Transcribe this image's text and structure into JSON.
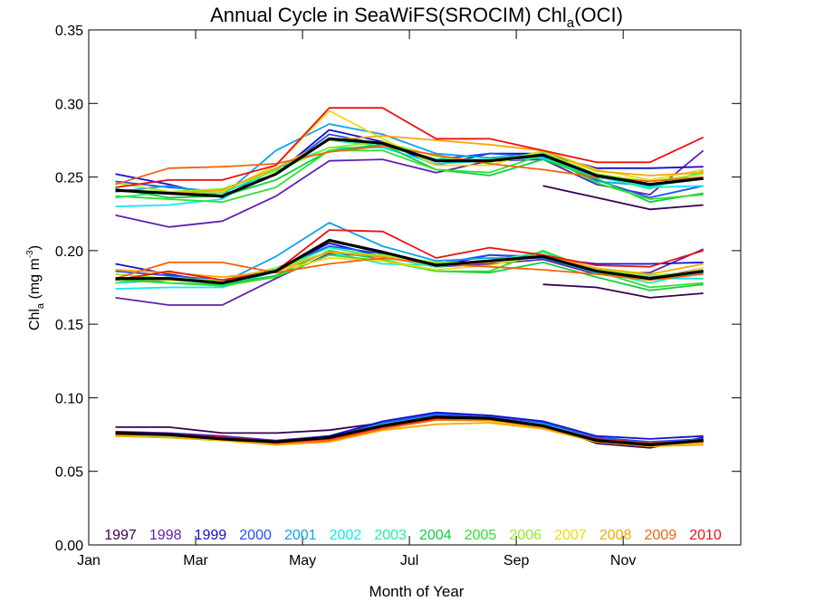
{
  "chart_data": {
    "type": "line",
    "title": "Annual Cycle in SeaWiFS(SROCIM) Chl",
    "title_sub": "a",
    "title_tail": "(OCI)",
    "xlabel": "Month of Year",
    "ylabel_main": "Chl",
    "ylabel_sub": "a",
    "ylabel_units": "(mg m",
    "ylabel_sup": "-3",
    "ylabel_close": ")",
    "xlim": [
      0.5,
      12.7
    ],
    "ylim": [
      0.0,
      0.35
    ],
    "x_ticks": [
      {
        "value": 0.5,
        "label": "Jan"
      },
      {
        "value": 2.5,
        "label": "Mar"
      },
      {
        "value": 4.5,
        "label": "May"
      },
      {
        "value": 6.5,
        "label": "Jul"
      },
      {
        "value": 8.5,
        "label": "Sep"
      },
      {
        "value": 10.5,
        "label": "Nov"
      }
    ],
    "y_ticks": [
      {
        "value": 0.0,
        "label": "0.00"
      },
      {
        "value": 0.05,
        "label": "0.05"
      },
      {
        "value": 0.1,
        "label": "0.10"
      },
      {
        "value": 0.15,
        "label": "0.15"
      },
      {
        "value": 0.2,
        "label": "0.20"
      },
      {
        "value": 0.25,
        "label": "0.25"
      },
      {
        "value": 0.3,
        "label": "0.30"
      },
      {
        "value": 0.35,
        "label": "0.35"
      }
    ],
    "x": [
      1,
      2,
      3,
      4,
      5,
      6,
      7,
      8,
      9,
      10,
      11,
      12
    ],
    "legend_position": "bottom",
    "series": [
      {
        "name": "1997",
        "color": "#3a0050",
        "upper": [
          null,
          null,
          null,
          null,
          null,
          null,
          null,
          null,
          0.244,
          0.236,
          0.228,
          0.231
        ],
        "middle": [
          null,
          null,
          null,
          null,
          null,
          null,
          null,
          null,
          0.177,
          0.175,
          0.168,
          0.171
        ],
        "lower": [
          0.08,
          0.08,
          0.076,
          0.076,
          0.078,
          0.083,
          0.088,
          0.087,
          0.082,
          0.069,
          0.066,
          0.073
        ]
      },
      {
        "name": "1998",
        "color": "#6020b0",
        "upper": [
          0.224,
          0.216,
          0.22,
          0.237,
          0.261,
          0.262,
          0.253,
          0.261,
          0.262,
          0.245,
          0.238,
          0.268
        ],
        "middle": [
          0.168,
          0.163,
          0.163,
          0.181,
          0.198,
          0.196,
          0.189,
          0.191,
          0.194,
          0.184,
          0.185,
          0.201
        ],
        "lower": [
          0.077,
          0.076,
          0.074,
          0.071,
          0.074,
          0.082,
          0.087,
          0.087,
          0.083,
          0.072,
          0.068,
          0.072
        ]
      },
      {
        "name": "1999",
        "color": "#1010d0",
        "upper": [
          0.252,
          0.245,
          0.236,
          0.252,
          0.282,
          0.274,
          0.258,
          0.266,
          0.266,
          0.256,
          0.256,
          0.257
        ],
        "middle": [
          0.191,
          0.184,
          0.178,
          0.187,
          0.205,
          0.196,
          0.189,
          0.197,
          0.195,
          0.191,
          0.191,
          0.192
        ],
        "lower": [
          0.076,
          0.075,
          0.072,
          0.07,
          0.074,
          0.084,
          0.09,
          0.088,
          0.084,
          0.074,
          0.072,
          0.074
        ]
      },
      {
        "name": "2000",
        "color": "#2050f0",
        "upper": [
          0.247,
          0.243,
          0.24,
          0.252,
          0.279,
          0.272,
          0.262,
          0.266,
          0.264,
          0.248,
          0.236,
          0.244
        ],
        "middle": [
          0.186,
          0.183,
          0.18,
          0.188,
          0.203,
          0.198,
          0.191,
          0.197,
          0.196,
          0.188,
          0.181,
          0.188
        ],
        "lower": [
          0.075,
          0.074,
          0.072,
          0.07,
          0.073,
          0.083,
          0.089,
          0.087,
          0.083,
          0.073,
          0.07,
          0.072
        ]
      },
      {
        "name": "2001",
        "color": "#10a0f0",
        "upper": [
          0.24,
          0.244,
          0.237,
          0.268,
          0.286,
          0.279,
          0.266,
          0.263,
          0.266,
          0.247,
          0.244,
          0.249
        ],
        "middle": [
          0.178,
          0.18,
          0.178,
          0.196,
          0.219,
          0.203,
          0.193,
          0.195,
          0.195,
          0.185,
          0.182,
          0.185
        ],
        "lower": [
          0.075,
          0.074,
          0.071,
          0.069,
          0.073,
          0.082,
          0.088,
          0.086,
          0.081,
          0.071,
          0.069,
          0.071
        ]
      },
      {
        "name": "2002",
        "color": "#10e8f0",
        "upper": [
          0.23,
          0.231,
          0.235,
          0.256,
          0.27,
          0.27,
          0.259,
          0.261,
          0.263,
          0.25,
          0.243,
          0.244
        ],
        "middle": [
          0.174,
          0.175,
          0.175,
          0.186,
          0.199,
          0.191,
          0.19,
          0.193,
          0.196,
          0.185,
          0.181,
          0.181
        ],
        "lower": [
          0.075,
          0.075,
          0.072,
          0.07,
          0.073,
          0.082,
          0.087,
          0.086,
          0.082,
          0.072,
          0.069,
          0.071
        ]
      },
      {
        "name": "2003",
        "color": "#20f0a0",
        "upper": [
          0.236,
          0.24,
          0.239,
          0.255,
          0.275,
          0.271,
          0.262,
          0.262,
          0.266,
          0.251,
          0.242,
          0.254
        ],
        "middle": [
          0.178,
          0.182,
          0.177,
          0.187,
          0.202,
          0.196,
          0.189,
          0.193,
          0.199,
          0.186,
          0.178,
          0.186
        ],
        "lower": [
          0.075,
          0.074,
          0.071,
          0.069,
          0.072,
          0.081,
          0.086,
          0.085,
          0.08,
          0.071,
          0.068,
          0.07
        ]
      },
      {
        "name": "2004",
        "color": "#10d040",
        "upper": [
          0.242,
          0.236,
          0.237,
          0.248,
          0.268,
          0.272,
          0.255,
          0.251,
          0.262,
          0.249,
          0.233,
          0.239
        ],
        "middle": [
          0.181,
          0.178,
          0.177,
          0.183,
          0.2,
          0.194,
          0.186,
          0.185,
          0.192,
          0.182,
          0.173,
          0.177
        ],
        "lower": [
          0.076,
          0.075,
          0.072,
          0.07,
          0.072,
          0.081,
          0.087,
          0.085,
          0.08,
          0.072,
          0.068,
          0.07
        ]
      },
      {
        "name": "2005",
        "color": "#30e030",
        "upper": [
          0.237,
          0.235,
          0.233,
          0.243,
          0.268,
          0.268,
          0.255,
          0.253,
          0.265,
          0.246,
          0.235,
          0.238
        ],
        "middle": [
          0.18,
          0.178,
          0.176,
          0.182,
          0.197,
          0.193,
          0.186,
          0.186,
          0.2,
          0.186,
          0.175,
          0.178
        ],
        "lower": [
          0.074,
          0.073,
          0.071,
          0.069,
          0.071,
          0.08,
          0.086,
          0.085,
          0.079,
          0.071,
          0.067,
          0.069
        ]
      },
      {
        "name": "2006",
        "color": "#90f020",
        "upper": [
          0.246,
          0.24,
          0.242,
          0.254,
          0.27,
          0.274,
          0.264,
          0.26,
          0.267,
          0.252,
          0.247,
          0.252
        ],
        "middle": [
          0.184,
          0.181,
          0.18,
          0.188,
          0.199,
          0.197,
          0.192,
          0.192,
          0.197,
          0.187,
          0.183,
          0.186
        ],
        "lower": [
          0.074,
          0.073,
          0.071,
          0.068,
          0.071,
          0.08,
          0.085,
          0.084,
          0.079,
          0.071,
          0.067,
          0.069
        ]
      },
      {
        "name": "2007",
        "color": "#f0d810",
        "upper": [
          0.241,
          0.24,
          0.24,
          0.258,
          0.295,
          0.276,
          0.258,
          0.258,
          0.268,
          0.255,
          0.248,
          0.255
        ],
        "middle": [
          0.181,
          0.18,
          0.178,
          0.186,
          0.195,
          0.193,
          0.187,
          0.19,
          0.197,
          0.186,
          0.18,
          0.188
        ],
        "lower": [
          0.074,
          0.073,
          0.071,
          0.068,
          0.071,
          0.079,
          0.085,
          0.084,
          0.079,
          0.07,
          0.067,
          0.069
        ]
      },
      {
        "name": "2008",
        "color": "#f8a800",
        "upper": [
          0.241,
          0.239,
          0.241,
          0.256,
          0.275,
          0.278,
          0.275,
          0.272,
          0.268,
          0.254,
          0.251,
          0.253
        ],
        "middle": [
          0.187,
          0.185,
          0.182,
          0.186,
          0.199,
          0.196,
          0.19,
          0.192,
          0.197,
          0.188,
          0.184,
          0.191
        ],
        "lower": [
          0.074,
          0.073,
          0.071,
          0.068,
          0.07,
          0.078,
          0.082,
          0.083,
          0.079,
          0.07,
          0.067,
          0.068
        ]
      },
      {
        "name": "2009",
        "color": "#f86010",
        "upper": [
          0.245,
          0.256,
          0.257,
          0.259,
          0.267,
          0.271,
          0.265,
          0.259,
          0.255,
          0.25,
          0.247,
          0.25
        ],
        "middle": [
          0.181,
          0.192,
          0.192,
          0.185,
          0.191,
          0.195,
          0.191,
          0.189,
          0.187,
          0.184,
          0.18,
          0.184
        ],
        "lower": [
          0.075,
          0.075,
          0.073,
          0.069,
          0.071,
          0.079,
          0.085,
          0.085,
          0.08,
          0.071,
          0.068,
          0.07
        ]
      },
      {
        "name": "2010",
        "color": "#f01010",
        "upper": [
          0.243,
          0.248,
          0.248,
          0.258,
          0.297,
          0.297,
          0.276,
          0.276,
          0.268,
          0.26,
          0.26,
          0.277
        ],
        "middle": [
          0.18,
          0.186,
          0.18,
          0.186,
          0.214,
          0.213,
          0.195,
          0.202,
          0.197,
          0.19,
          0.189,
          0.2
        ],
        "lower": [
          0.076,
          0.075,
          0.073,
          0.07,
          0.072,
          0.08,
          0.086,
          0.086,
          0.081,
          0.072,
          0.069,
          0.071
        ]
      }
    ],
    "mean_series": {
      "color": "#000000",
      "upper": [
        0.241,
        0.239,
        0.237,
        0.252,
        0.276,
        0.273,
        0.261,
        0.261,
        0.265,
        0.251,
        0.245,
        0.249
      ],
      "middle": [
        0.181,
        0.181,
        0.178,
        0.186,
        0.207,
        0.199,
        0.19,
        0.193,
        0.196,
        0.186,
        0.181,
        0.186
      ],
      "lower": [
        0.076,
        0.075,
        0.072,
        0.07,
        0.073,
        0.081,
        0.087,
        0.086,
        0.081,
        0.071,
        0.068,
        0.071
      ]
    }
  }
}
